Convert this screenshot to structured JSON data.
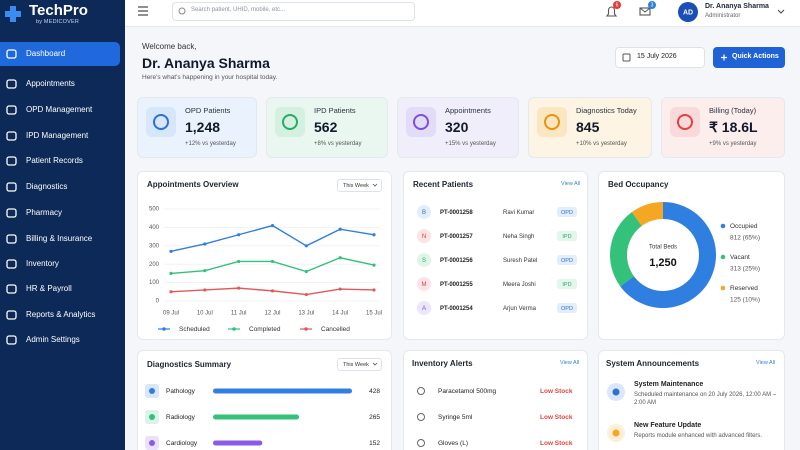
{
  "sidebar": {
    "brand": "TechPro",
    "sub": "by MEDICOVER",
    "nav": [
      "Dashboard",
      "Appointments",
      "OPD Management",
      "IPD Management",
      "Patient Records",
      "Diagnostics",
      "Pharmacy",
      "Billing & Insurance",
      "Inventory",
      "HR & Payroll",
      "Reports & Analytics",
      "Admin Settings"
    ]
  },
  "topbar": {
    "search_placeholder": "Search patient, UHID, mobile, etc...",
    "notifications": "6",
    "messages": "3",
    "avatar": "AD",
    "user": "Dr. Ananya Sharma",
    "role": "Administrator"
  },
  "welcome": {
    "greeting": "Welcome back,",
    "name": "Dr. Ananya Sharma",
    "subtitle": "Here's what's happening in your hospital today.",
    "date": "15 July 2026",
    "action": "Quick Actions"
  },
  "stats": [
    {
      "label": "OPD Patients",
      "value": "1,248",
      "change": "+12% vs yesterday"
    },
    {
      "label": "IPD Patients",
      "value": "562",
      "change": "+8% vs yesterday"
    },
    {
      "label": "Appointments",
      "value": "320",
      "change": "+15% vs yesterday"
    },
    {
      "label": "Diagnostics Today",
      "value": "845",
      "change": "+10% vs yesterday"
    },
    {
      "label": "Billing (Today)",
      "value": "₹ 18.6L",
      "change": "+9% vs yesterday"
    }
  ],
  "appointments_overview": {
    "title": "Appointments Overview",
    "filter": "This Week",
    "chart_data": {
      "type": "line",
      "categories": [
        "09 Jul",
        "10 Jul",
        "11 Jul",
        "12 Jul",
        "13 Jul",
        "14 Jul",
        "15 Jul"
      ],
      "series": [
        {
          "name": "Scheduled",
          "color": "#2f7fe0",
          "values": [
            270,
            310,
            360,
            410,
            300,
            390,
            360
          ]
        },
        {
          "name": "Completed",
          "color": "#34c27a",
          "values": [
            150,
            165,
            215,
            215,
            160,
            235,
            195
          ]
        },
        {
          "name": "Cancelled",
          "color": "#e05a5a",
          "values": [
            50,
            60,
            70,
            55,
            35,
            65,
            60
          ]
        }
      ],
      "ylim": [
        0,
        500
      ],
      "yticks": [
        0,
        100,
        200,
        300,
        400,
        500
      ],
      "grid": true
    }
  },
  "recent_patients": {
    "title": "Recent Patients",
    "link": "View All",
    "rows": [
      {
        "initial": "B",
        "id": "PT-0001258",
        "name": "Ravi Kumar",
        "type": "OPD"
      },
      {
        "initial": "N",
        "id": "PT-0001257",
        "name": "Neha Singh",
        "type": "IPD"
      },
      {
        "initial": "S",
        "id": "PT-0001256",
        "name": "Suresh Patel",
        "type": "OPD"
      },
      {
        "initial": "M",
        "id": "PT-0001255",
        "name": "Meera Joshi",
        "type": "IPD"
      },
      {
        "initial": "A",
        "id": "PT-0001254",
        "name": "Arjun Verma",
        "type": "OPD"
      }
    ]
  },
  "bed_occupancy": {
    "title": "Bed Occupancy",
    "chart_data": {
      "type": "pie",
      "center_label": "Total Beds",
      "center_value": "1,250",
      "categories": [
        "Occupied",
        "Vacant",
        "Reserved"
      ],
      "values": [
        812,
        313,
        125
      ],
      "value_labels": [
        "812 (65%)",
        "313 (25%)",
        "125 (10%)"
      ],
      "colors": [
        "#2f7fe0",
        "#34c27a",
        "#f5a623"
      ]
    }
  },
  "diagnostics_summary": {
    "title": "Diagnostics Summary",
    "filter": "This Week",
    "chart_data": {
      "type": "bar",
      "categories": [
        "Pathology",
        "Radiology",
        "Cardiology"
      ],
      "values": [
        428,
        265,
        152
      ],
      "colors": [
        "#2f7fe0",
        "#34c27a",
        "#8a5ce6"
      ]
    }
  },
  "inventory_alerts": {
    "title": "Inventory Alerts",
    "link": "View All",
    "items": [
      {
        "name": "Paracetamol 500mg",
        "status": "Low Stock"
      },
      {
        "name": "Syringe 5ml",
        "status": "Low Stock"
      },
      {
        "name": "Gloves (L)",
        "status": "Low Stock"
      }
    ]
  },
  "announcements": {
    "title": "System Announcements",
    "link": "View All",
    "items": [
      {
        "title": "System Maintenance",
        "text": "Scheduled maintenance on 20 July 2026, 12:00 AM – 2:00 AM"
      },
      {
        "title": "New Feature Update",
        "text": "Reports module enhanced with advanced filters."
      }
    ]
  }
}
